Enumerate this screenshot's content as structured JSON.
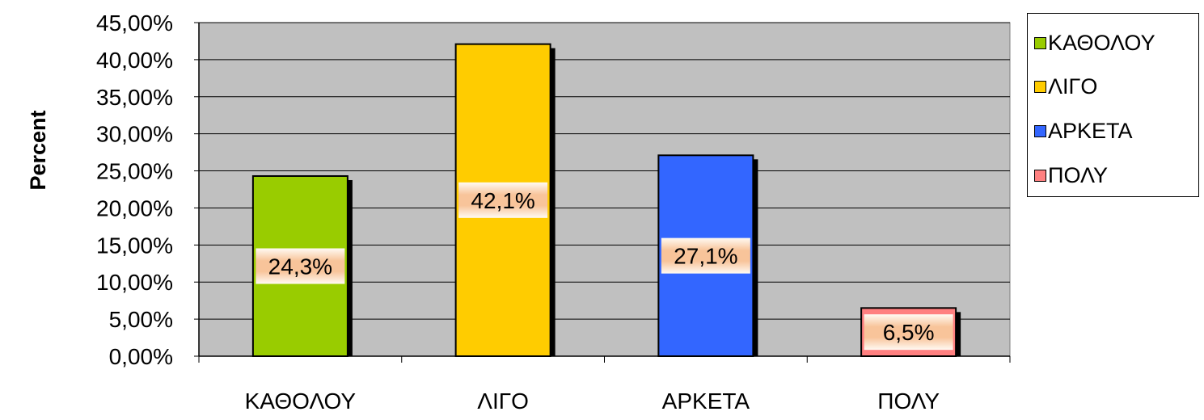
{
  "chart_data": {
    "type": "bar",
    "title": "",
    "xlabel": "",
    "ylabel": "Percent",
    "ylim": [
      0,
      45
    ],
    "ytick_step": 5,
    "ytick_labels": [
      "0,00%",
      "5,00%",
      "10,00%",
      "15,00%",
      "20,00%",
      "25,00%",
      "30,00%",
      "35,00%",
      "40,00%",
      "45,00%"
    ],
    "categories": [
      "ΚΑΘΟΛΟΥ",
      "ΛΙΓΟ",
      "ΑΡΚΕΤΑ",
      "ΠΟΛΥ"
    ],
    "values": [
      24.3,
      42.1,
      27.1,
      6.5
    ],
    "data_labels": [
      "24,3%",
      "42,1%",
      "27,1%",
      "6,5%"
    ],
    "colors": [
      "#99cc00",
      "#ffcc00",
      "#3366ff",
      "#ff8080"
    ],
    "plot_background": "#c0c0c0",
    "grid": true,
    "legend_position": "right",
    "legend": [
      {
        "label": "ΚΑΘΟΛΟΥ",
        "color": "#99cc00"
      },
      {
        "label": "ΛΙΓΟ",
        "color": "#ffcc00"
      },
      {
        "label": "ΑΡΚΕΤΑ",
        "color": "#3366ff"
      },
      {
        "label": "ΠΟΛΥ",
        "color": "#ff8080"
      }
    ]
  }
}
